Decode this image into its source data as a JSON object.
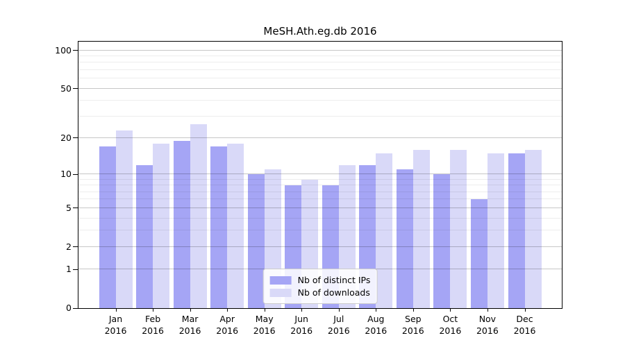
{
  "chart_data": {
    "type": "bar",
    "title": "MeSH.Ath.eg.db 2016",
    "categories": [
      "Jan",
      "Feb",
      "Mar",
      "Apr",
      "May",
      "Jun",
      "Jul",
      "Aug",
      "Sep",
      "Oct",
      "Nov",
      "Dec"
    ],
    "year_label": "2016",
    "series": [
      {
        "name": "Nb of distinct IPs",
        "color": "#a5a5f5",
        "values": [
          17,
          12,
          19,
          17,
          10,
          8,
          8,
          12,
          11,
          10,
          6,
          15
        ]
      },
      {
        "name": "Nb of downloads",
        "color": "#d9d9f8",
        "values": [
          23,
          18,
          26,
          18,
          11,
          9,
          12,
          15,
          16,
          16,
          15,
          16
        ]
      }
    ],
    "yscale": "log1p",
    "yticks": [
      0,
      1,
      2,
      5,
      10,
      20,
      50,
      100
    ],
    "minor_gridlines": [
      3,
      4,
      6,
      7,
      8,
      9,
      30,
      40,
      60,
      70,
      80,
      90
    ],
    "ylim": [
      0,
      117
    ],
    "grid": true,
    "legend_position": "lower center",
    "colors": {
      "distinct_ips_bar": "#a5a5f5",
      "downloads_bar": "#d9d9f8",
      "axis_frame": "#000000",
      "major_grid": "#c7c7c7",
      "minor_grid": "#ececec",
      "background": "#ffffff"
    }
  }
}
